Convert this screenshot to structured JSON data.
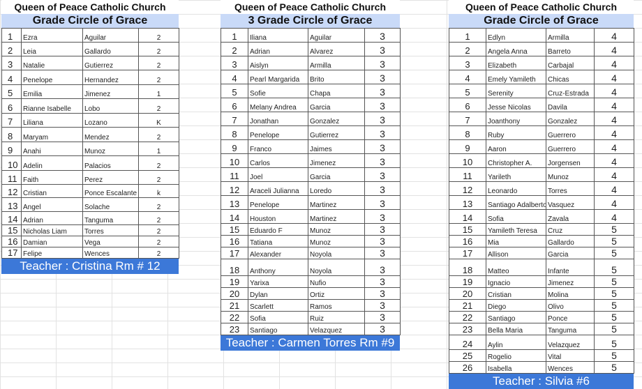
{
  "tables": [
    {
      "church": "Queen of Peace Catholic Church",
      "title": "Grade Circle of Grace",
      "teacher": "Teacher : Cristina Rm # 12",
      "rows": [
        [
          "1",
          "Ezra",
          "Aguilar",
          "2"
        ],
        [
          "2",
          "Leia",
          "Gallardo",
          "2"
        ],
        [
          "3",
          "Natalie",
          "Gutierrez",
          "2"
        ],
        [
          "4",
          "Penelope",
          "Hernandez",
          "2"
        ],
        [
          "5",
          "Emilia",
          "Jimenez",
          "1"
        ],
        [
          "6",
          "Rianne Isabelle",
          "Lobo",
          "2"
        ],
        [
          "7",
          "Liliana",
          "Lozano",
          "K"
        ],
        [
          "8",
          "Maryam",
          "Mendez",
          "2"
        ],
        [
          "9",
          "Anahi",
          "Munoz",
          "1"
        ],
        [
          "10",
          "Adelin",
          "Palacios",
          "2"
        ],
        [
          "11",
          "Faith",
          "Perez",
          "2"
        ],
        [
          "12",
          "Cristian",
          "Ponce Escalante",
          "k"
        ],
        [
          "13",
          "Angel",
          "Solache",
          "2"
        ],
        [
          "14",
          "Adrian",
          "Tanguma",
          "2"
        ],
        [
          "15",
          "Nicholas Liam",
          "Torres",
          "2"
        ],
        [
          "16",
          "Damian",
          "Vega",
          "2"
        ],
        [
          "17",
          "Felipe",
          "Wences",
          "2"
        ]
      ]
    },
    {
      "church": "Queen of Peace Catholic Church",
      "title": "3 Grade Circle of Grace",
      "teacher": "Teacher : Carmen Torres Rm #9",
      "rows": [
        [
          "1",
          "Iliana",
          "Aguilar",
          "3"
        ],
        [
          "2",
          "Adrian",
          "Alvarez",
          "3"
        ],
        [
          "3",
          "Aislyn",
          "Armilla",
          "3"
        ],
        [
          "4",
          "Pearl Margarida",
          "Brito",
          "3"
        ],
        [
          "5",
          "Sofie",
          "Chapa",
          "3"
        ],
        [
          "6",
          "Melany Andrea",
          "Garcia",
          "3"
        ],
        [
          "7",
          "Jonathan",
          "Gonzalez",
          "3"
        ],
        [
          "8",
          "Penelope",
          "Gutierrez",
          "3"
        ],
        [
          "9",
          "Franco",
          "Jaimes",
          "3"
        ],
        [
          "10",
          "Carlos",
          "Jimenez",
          "3"
        ],
        [
          "11",
          "Joel",
          "Garcia",
          "3"
        ],
        [
          "12",
          "Araceli Julianna",
          "Loredo",
          "3"
        ],
        [
          "13",
          "Penelope",
          "Martinez",
          "3"
        ],
        [
          "14",
          "Houston",
          "Martinez",
          "3"
        ],
        [
          "15",
          "Eduardo F",
          "Munoz",
          "3"
        ],
        [
          "16",
          "Tatiana",
          "Munoz",
          "3"
        ],
        [
          "17",
          "Alexander",
          "Noyola",
          "3"
        ],
        [
          "18",
          "Anthony",
          "Noyola",
          "3"
        ],
        [
          "19",
          "Yarixa",
          "Nufio",
          "3"
        ],
        [
          "20",
          "Dylan",
          "Ortiz",
          "3"
        ],
        [
          "21",
          "Scarlett",
          "Ramos",
          "3"
        ],
        [
          "22",
          "Sofia",
          "Ruiz",
          "3"
        ],
        [
          "23",
          "Santiago",
          "Velazquez",
          "3"
        ]
      ]
    },
    {
      "church": "Queen of Peace Catholic Church",
      "title": "Grade Circle of Grace",
      "teacher": "Teacher : Silvia #6",
      "rows": [
        [
          "1",
          "Edlyn",
          "Armilla",
          "4"
        ],
        [
          "2",
          "Angela Anna",
          "Barreto",
          "4"
        ],
        [
          "3",
          "Elizabeth",
          "Carbajal",
          "4"
        ],
        [
          "4",
          "Emely Yamileth",
          "Chicas",
          "4"
        ],
        [
          "5",
          "Serenity",
          "Cruz-Estrada",
          "4"
        ],
        [
          "6",
          "Jesse Nicolas",
          "Davila",
          "4"
        ],
        [
          "7",
          "Joanthony",
          "Gonzalez",
          "4"
        ],
        [
          "8",
          "Ruby",
          "Guerrero",
          "4"
        ],
        [
          "9",
          "Aaron",
          "Guerrero",
          "4"
        ],
        [
          "10",
          "Christopher A.",
          "Jorgensen",
          "4"
        ],
        [
          "11",
          "Yarileth",
          "Munoz",
          "4"
        ],
        [
          "12",
          "Leonardo",
          "Torres",
          "4"
        ],
        [
          "13",
          "Santiago Adalberto",
          "Vasquez",
          "4"
        ],
        [
          "14",
          "Sofia",
          "Zavala",
          "4"
        ],
        [
          "15",
          "Yamileth Teresa",
          "Cruz",
          "5"
        ],
        [
          "16",
          "Mia",
          "Gallardo",
          "5"
        ],
        [
          "17",
          "Allison",
          "Garcia",
          "5"
        ],
        [
          "18",
          "Matteo",
          "Infante",
          "5"
        ],
        [
          "19",
          "Ignacio",
          "Jimenez",
          "5"
        ],
        [
          "20",
          "Cristian",
          "Molina",
          "5"
        ],
        [
          "21",
          "Diego",
          "Olivo",
          "5"
        ],
        [
          "22",
          "Santiago",
          "Ponce",
          "5"
        ],
        [
          "23",
          "Bella Maria",
          "Tanguma",
          "5"
        ],
        [
          "24",
          "Aylin",
          "Velazquez",
          "5"
        ],
        [
          "25",
          "Rogelio",
          "Vital",
          "5"
        ],
        [
          "26",
          "Isabella",
          "Wences",
          "5"
        ]
      ]
    }
  ],
  "colors": {
    "title_bg": "#c9daf8",
    "teacher_bg": "#3c78d8"
  }
}
